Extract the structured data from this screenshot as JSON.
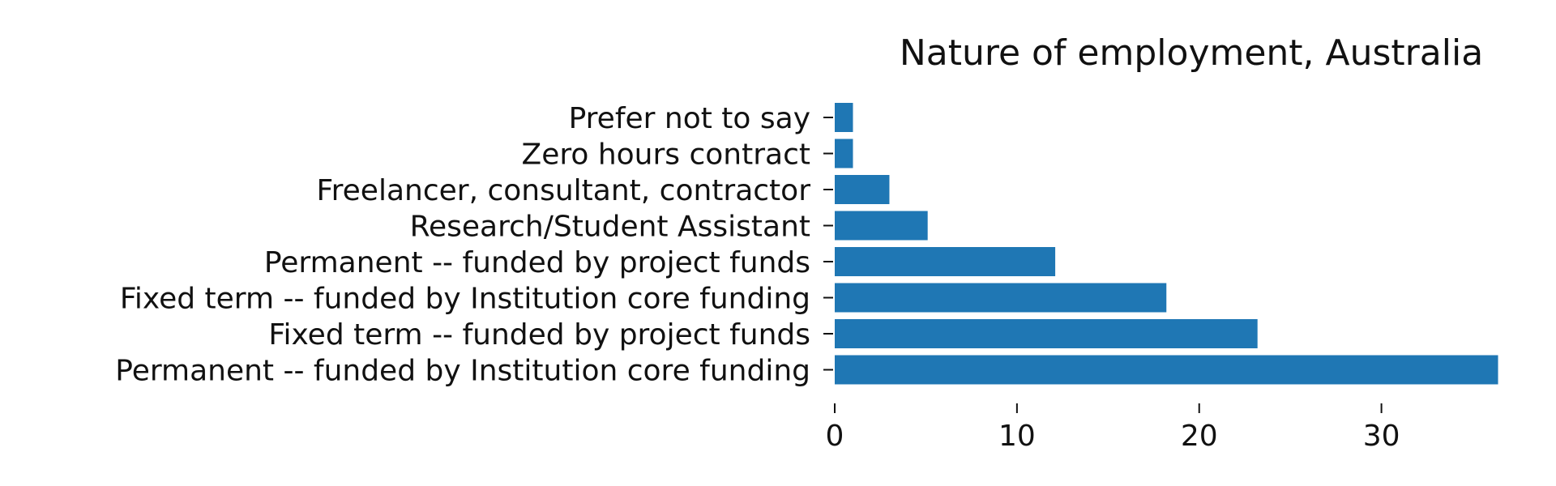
{
  "chart_data": {
    "type": "bar",
    "orientation": "horizontal",
    "title": "Nature of employment, Australia",
    "xlabel": "",
    "ylabel": "",
    "categories": [
      "Permanent -- funded by Institution core funding",
      "Fixed term -- funded by project funds",
      "Fixed term -- funded by Institution core funding",
      "Permanent -- funded by project funds",
      "Research/Student Assistant",
      "Freelancer, consultant, contractor",
      "Zero hours contract",
      "Prefer not to say"
    ],
    "values": [
      36.4,
      23.2,
      18.2,
      12.1,
      5.1,
      3.0,
      1.0,
      1.0
    ],
    "xlim": [
      0,
      37
    ],
    "xticks": [
      0,
      10,
      20,
      30
    ],
    "grid": false,
    "legend": "none",
    "bar_color": "#1f77b4"
  }
}
